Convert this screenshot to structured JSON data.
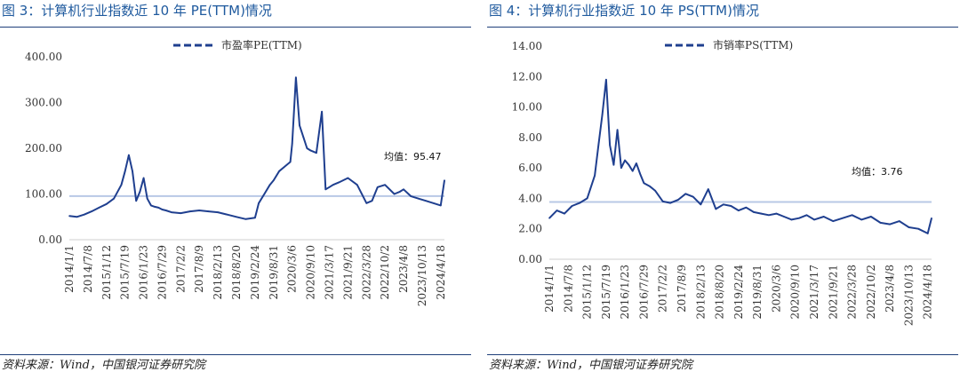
{
  "figures": [
    {
      "title": "图 3：计算机行业指数近 10 年 PE(TTM)情况",
      "source": "资料来源：Wind，中国银河证券研究院",
      "mean_label": "均值：95.47",
      "legend": "市盈率PE(TTM)"
    },
    {
      "title": "图 4：计算机行业指数近 10 年 PS(TTM)情况",
      "source": "资料来源：Wind，中国银河证券研究院",
      "mean_label": "均值：3.76",
      "legend": "市销率PS(TTM)"
    }
  ],
  "colors": {
    "series": "#1f3f8f",
    "mean_line": "#b8c8e6",
    "title": "#1f5a9e"
  },
  "chart_data": [
    {
      "type": "line",
      "title": "",
      "ylim": [
        0,
        400
      ],
      "yticks": [
        "400.00",
        "300.00",
        "200.00",
        "100.00",
        "0.00"
      ],
      "ytick_values": [
        400,
        300,
        200,
        100,
        0
      ],
      "x_labels": [
        "2014/1/1",
        "2014/7/8",
        "2015/1/12",
        "2015/7/19",
        "2016/1/23",
        "2016/7/29",
        "2017/2/2",
        "2017/8/9",
        "2018/2/13",
        "2018/8/20",
        "2019/2/24",
        "2019/8/31",
        "2020/3/6",
        "2020/9/10",
        "2021/3/17",
        "2021/9/21",
        "2022/3/28",
        "2022/10/2",
        "2023/4/8",
        "2023/10/13",
        "2024/4/18"
      ],
      "mean": 95.47,
      "series": [
        {
          "name": "市盈率PE(TTM)",
          "x": [
            0,
            0.4,
            0.8,
            1.2,
            1.6,
            2.0,
            2.4,
            2.8,
            3.0,
            3.2,
            3.4,
            3.6,
            3.8,
            4.0,
            4.2,
            4.4,
            4.6,
            4.8,
            5.0,
            5.2,
            5.5,
            6.0,
            6.5,
            7.0,
            7.5,
            8.0,
            8.5,
            9.0,
            9.5,
            10.0,
            10.2,
            10.5,
            10.8,
            11.0,
            11.3,
            11.6,
            11.9,
            12.0,
            12.2,
            12.4,
            12.6,
            12.8,
            13.0,
            13.3,
            13.6,
            13.8,
            14.0,
            14.2,
            14.5,
            15.0,
            15.5,
            16.0,
            16.3,
            16.6,
            17.0,
            17.5,
            17.8,
            18.0,
            18.4,
            18.8,
            19.2,
            19.6,
            20.0,
            20.2
          ],
          "y": [
            52,
            50,
            55,
            62,
            70,
            78,
            90,
            120,
            150,
            185,
            150,
            85,
            105,
            135,
            90,
            75,
            72,
            70,
            66,
            64,
            60,
            58,
            62,
            64,
            62,
            60,
            55,
            50,
            45,
            48,
            80,
            100,
            120,
            130,
            150,
            160,
            170,
            210,
            355,
            250,
            225,
            200,
            195,
            190,
            280,
            110,
            115,
            120,
            125,
            135,
            120,
            80,
            85,
            115,
            120,
            100,
            105,
            110,
            95,
            90,
            85,
            80,
            75,
            130
          ]
        }
      ]
    },
    {
      "type": "line",
      "title": "",
      "ylim": [
        0,
        14
      ],
      "yticks": [
        "14.00",
        "12.00",
        "10.00",
        "8.00",
        "6.00",
        "4.00",
        "2.00",
        "0.00"
      ],
      "ytick_values": [
        14,
        12,
        10,
        8,
        6,
        4,
        2,
        0
      ],
      "x_labels": [
        "2014/1/1",
        "2014/7/8",
        "2015/1/12",
        "2015/7/19",
        "2016/1/23",
        "2016/7/29",
        "2017/2/2",
        "2017/8/9",
        "2018/2/13",
        "2018/8/20",
        "2019/2/24",
        "2019/8/31",
        "2020/3/6",
        "2020/9/10",
        "2021/3/17",
        "2021/9/21",
        "2022/3/28",
        "2022/10/2",
        "2023/4/8",
        "2023/10/13",
        "2024/4/18"
      ],
      "mean": 3.76,
      "series": [
        {
          "name": "市销率PS(TTM)",
          "x": [
            0,
            0.4,
            0.8,
            1.2,
            1.6,
            2.0,
            2.4,
            2.6,
            2.8,
            3.0,
            3.2,
            3.4,
            3.6,
            3.8,
            4.0,
            4.2,
            4.4,
            4.6,
            4.8,
            5.0,
            5.3,
            5.6,
            6.0,
            6.4,
            6.8,
            7.2,
            7.6,
            8.0,
            8.4,
            8.8,
            9.2,
            9.6,
            10.0,
            10.4,
            10.8,
            11.2,
            11.6,
            12.0,
            12.4,
            12.8,
            13.2,
            13.6,
            14.0,
            14.5,
            15.0,
            15.5,
            16.0,
            16.5,
            17.0,
            17.5,
            18.0,
            18.5,
            19.0,
            19.5,
            20.0,
            20.2
          ],
          "y": [
            2.7,
            3.2,
            3.0,
            3.5,
            3.7,
            4.0,
            5.5,
            7.5,
            9.5,
            11.8,
            7.5,
            6.2,
            8.5,
            6.0,
            6.5,
            6.2,
            5.8,
            6.3,
            5.6,
            5.0,
            4.8,
            4.5,
            3.8,
            3.7,
            3.9,
            4.3,
            4.1,
            3.6,
            4.6,
            3.3,
            3.6,
            3.5,
            3.2,
            3.4,
            3.1,
            3.0,
            2.9,
            3.0,
            2.8,
            2.6,
            2.7,
            2.9,
            2.6,
            2.8,
            2.5,
            2.7,
            2.9,
            2.6,
            2.8,
            2.4,
            2.3,
            2.5,
            2.1,
            2.0,
            1.7,
            2.7
          ]
        }
      ]
    }
  ]
}
